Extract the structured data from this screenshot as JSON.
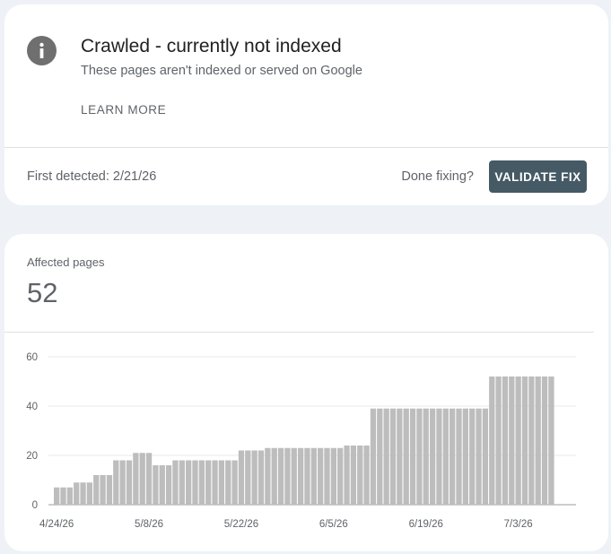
{
  "issue": {
    "icon": "info-icon",
    "title": "Crawled - currently not indexed",
    "subtitle": "These pages aren't indexed or served on Google",
    "learn_more": "LEARN MORE",
    "first_detected": "First detected: 2/21/26",
    "done_fixing": "Done fixing?",
    "validate_fix": "VALIDATE FIX",
    "accent_color": "#455a64"
  },
  "affected": {
    "label": "Affected pages",
    "value": "52"
  },
  "chart_data": {
    "type": "bar",
    "title": "",
    "xlabel": "",
    "ylabel": "",
    "ylim": [
      0,
      60
    ],
    "yticks": [
      0,
      20,
      40,
      60
    ],
    "xtick_labels": [
      "4/24/26",
      "5/8/26",
      "5/22/26",
      "6/5/26",
      "6/19/26",
      "7/3/26"
    ],
    "xtick_index": [
      0,
      14,
      28,
      42,
      56,
      70
    ],
    "grid": true,
    "bar_color": "#bdbdbd",
    "values": [
      7,
      7,
      7,
      9,
      9,
      9,
      12,
      12,
      12,
      18,
      18,
      18,
      21,
      21,
      21,
      16,
      16,
      16,
      18,
      18,
      18,
      18,
      18,
      18,
      18,
      18,
      18,
      18,
      22,
      22,
      22,
      22,
      23,
      23,
      23,
      23,
      23,
      23,
      23,
      23,
      23,
      23,
      23,
      23,
      24,
      24,
      24,
      24,
      39,
      39,
      39,
      39,
      39,
      39,
      39,
      39,
      39,
      39,
      39,
      39,
      39,
      39,
      39,
      39,
      39,
      39,
      52,
      52,
      52,
      52,
      52,
      52,
      52,
      52,
      52,
      52
    ]
  }
}
